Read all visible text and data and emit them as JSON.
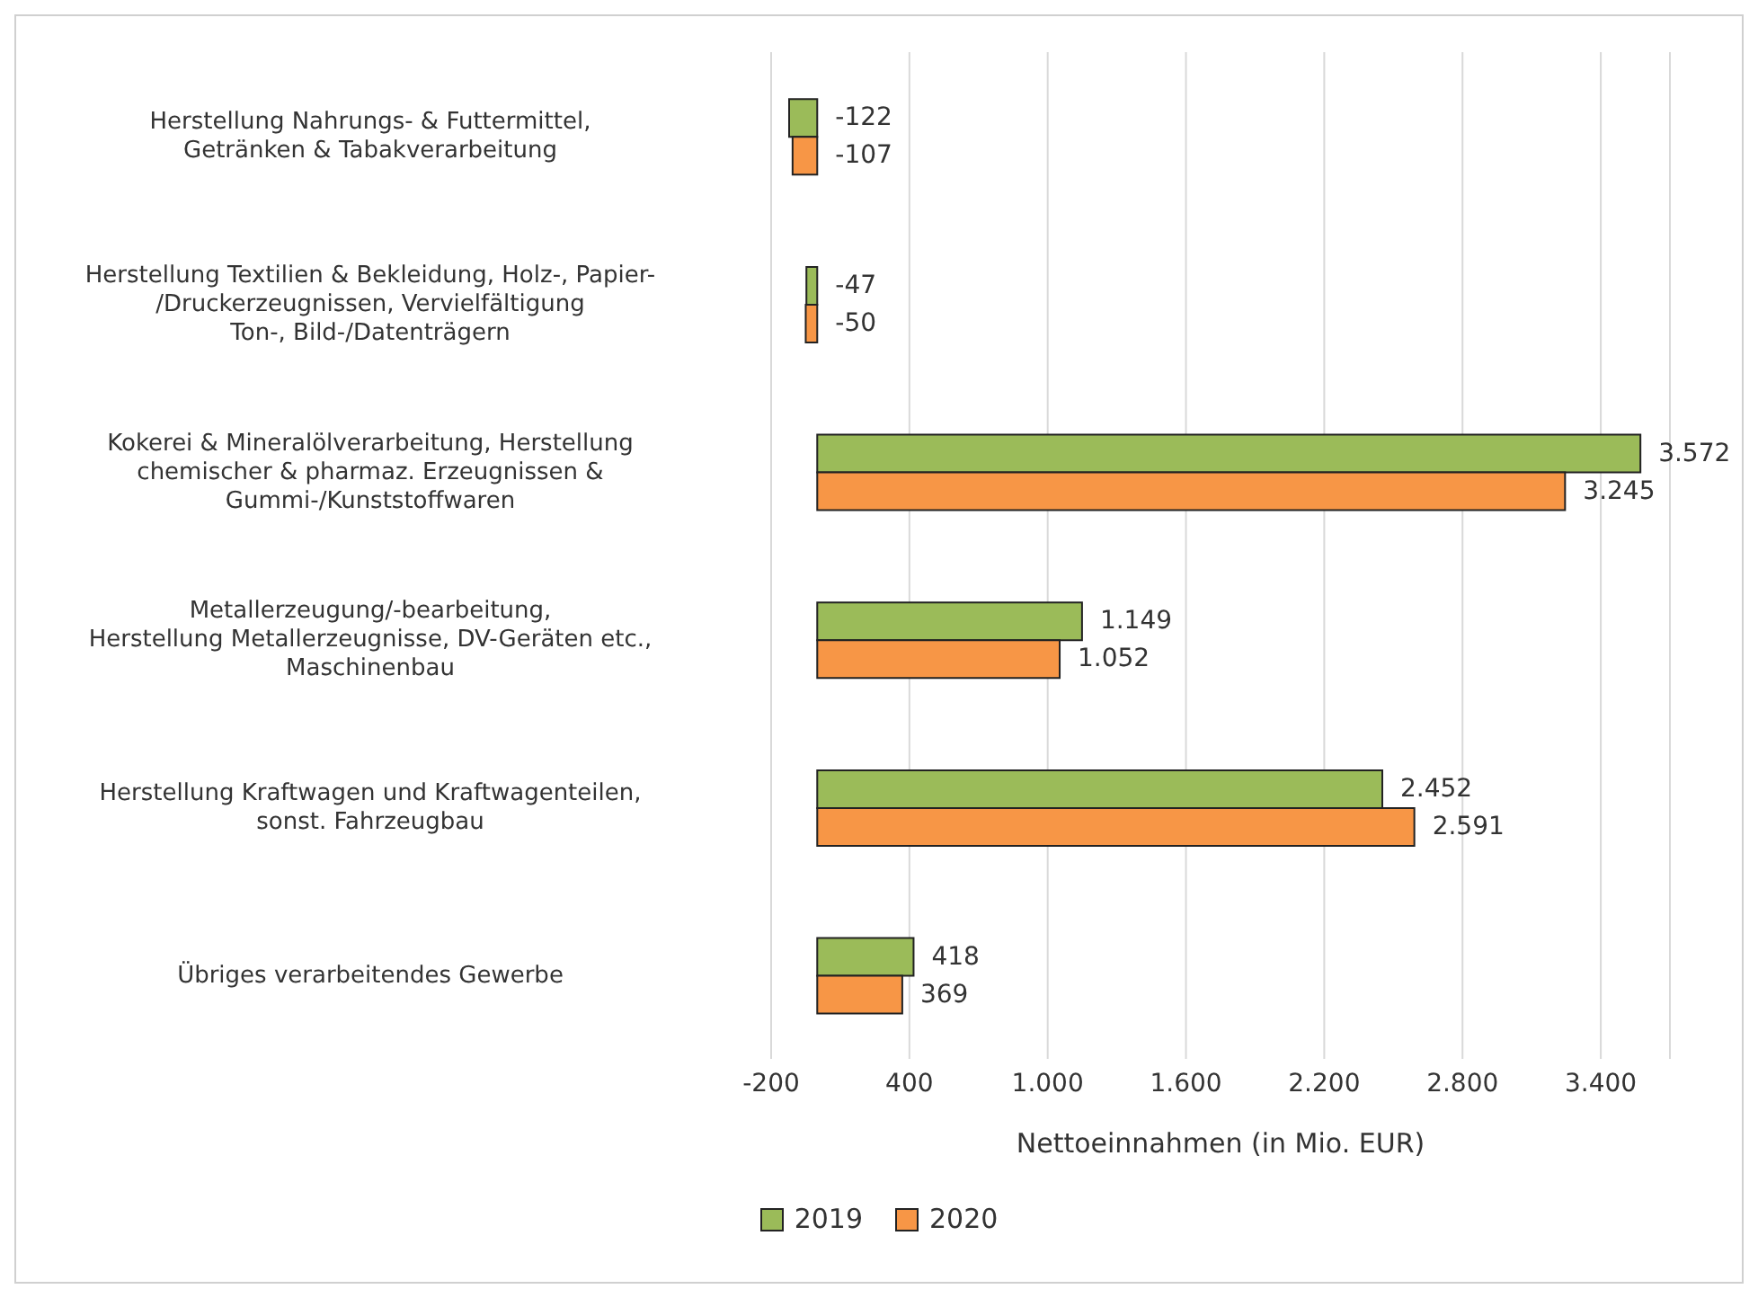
{
  "chart_data": {
    "type": "bar",
    "orientation": "horizontal",
    "categories": [
      "Herstellung Nahrungs- & Futtermittel,\nGetränken & Tabakverarbeitung",
      "Herstellung Textilien & Bekleidung, Holz-, Papier-\n/Druckerzeugnissen, Vervielfältigung\nTon-, Bild-/Datenträgern",
      "Kokerei & Mineralölverarbeitung, Herstellung\nchemischer & pharmaz. Erzeugnissen &\nGummi-/Kunststoffwaren",
      "Metallerzeugung/-bearbeitung,\nHerstellung Metallerzeugnisse, DV-Geräten etc.,\nMaschinenbau",
      "Herstellung Kraftwagen und Kraftwagenteilen,\nsonst. Fahrzeugbau",
      "Übriges verarbeitendes Gewerbe"
    ],
    "series": [
      {
        "name": "2019",
        "color": "#9bbb59",
        "values": [
          -122,
          -47,
          3572,
          1149,
          2452,
          418
        ],
        "value_labels": [
          "-122",
          "-47",
          "3.572",
          "1.149",
          "2.452",
          "418"
        ]
      },
      {
        "name": "2020",
        "color": "#f79646",
        "values": [
          -107,
          -50,
          3245,
          1052,
          2591,
          369
        ],
        "value_labels": [
          "-107",
          "-50",
          "3.245",
          "1.052",
          "2.591",
          "369"
        ]
      }
    ],
    "xlabel": "Nettoeinnahmen (in Mio. EUR)",
    "xlim": [
      -200,
      3700
    ],
    "xticks": [
      {
        "value": -200,
        "label": "-200"
      },
      {
        "value": 400,
        "label": "400"
      },
      {
        "value": 1000,
        "label": "1.000"
      },
      {
        "value": 1600,
        "label": "1.600"
      },
      {
        "value": 2200,
        "label": "2.200"
      },
      {
        "value": 2800,
        "label": "2.800"
      },
      {
        "value": 3400,
        "label": "3.400"
      }
    ],
    "grid": "x",
    "legend": "bottom"
  }
}
